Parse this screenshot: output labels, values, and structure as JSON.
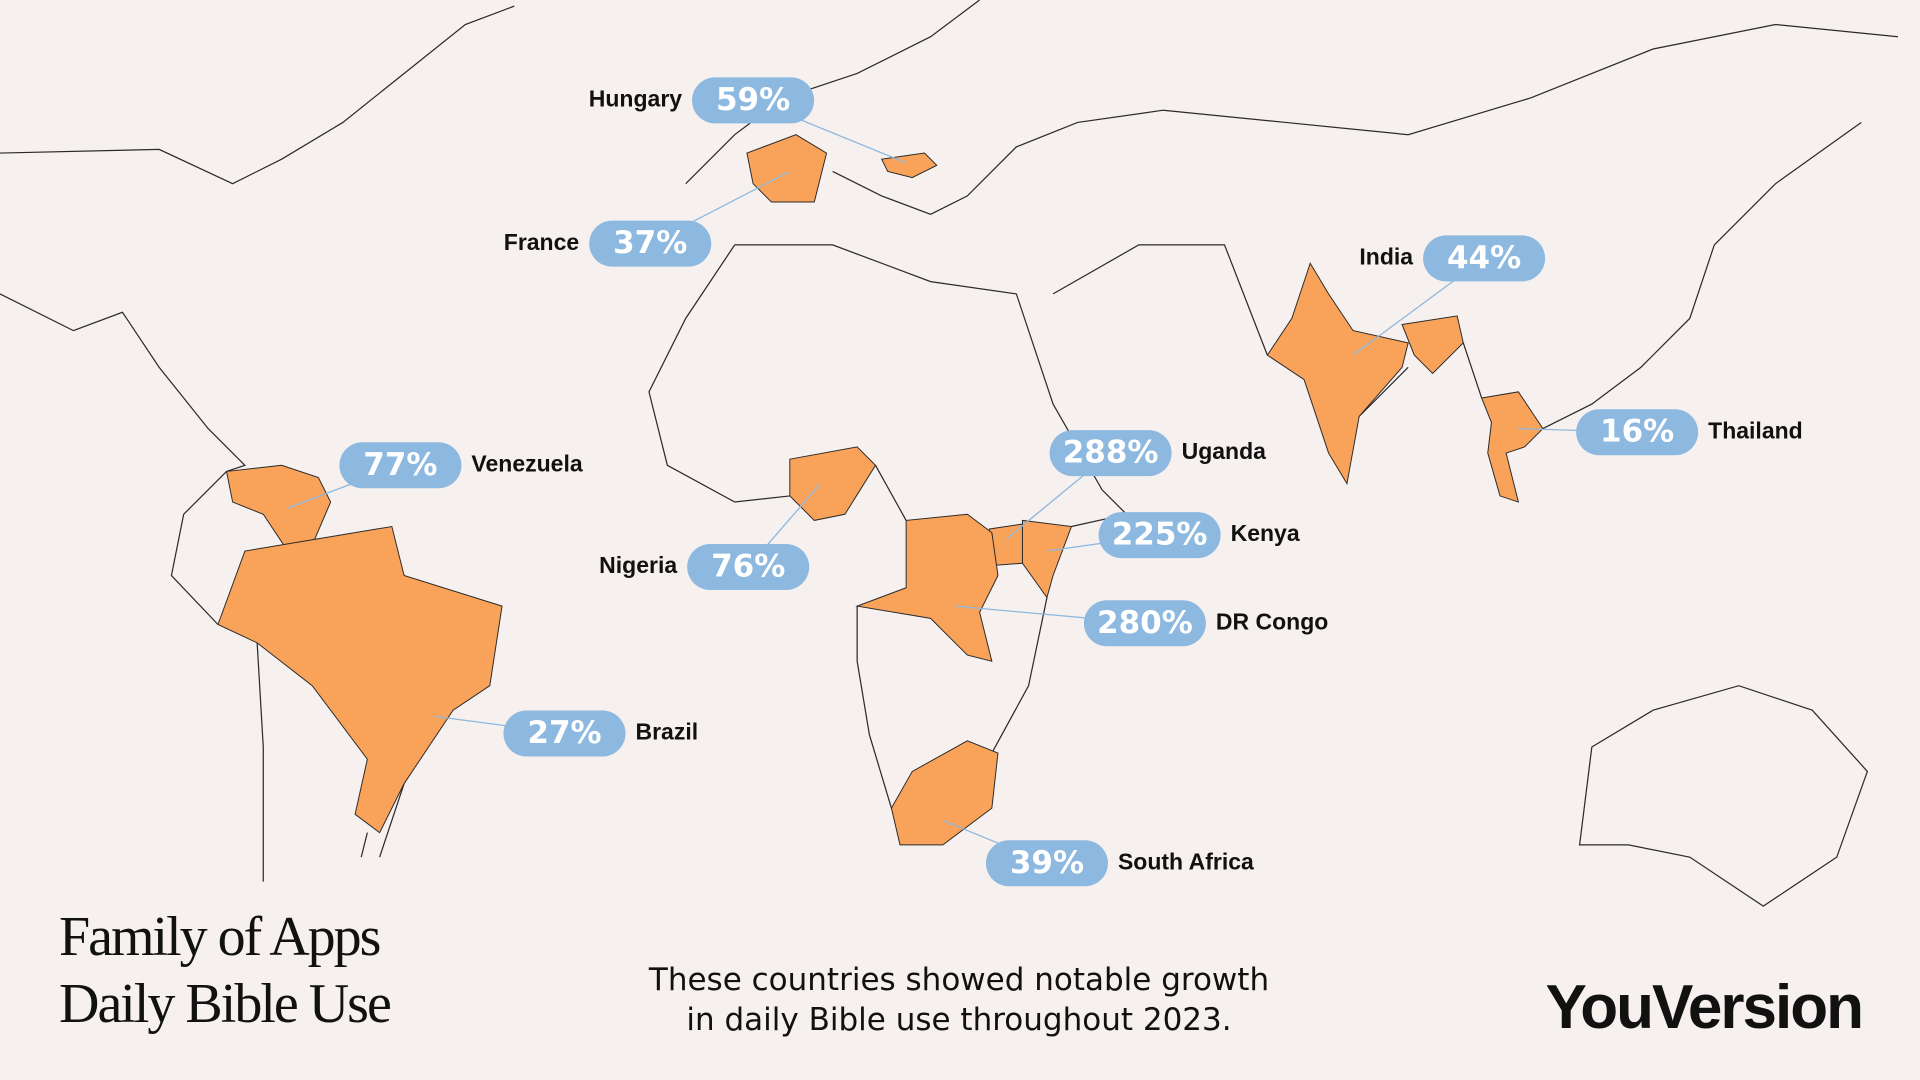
{
  "title_lines": [
    "Family of Apps",
    "Daily Bible Use"
  ],
  "subtitle_lines": [
    "These countries showed notable growth",
    "in daily Bible use throughout 2023."
  ],
  "brand": "YouVersion",
  "countries": [
    {
      "name": "Hungary",
      "growth": "59%"
    },
    {
      "name": "France",
      "growth": "37%"
    },
    {
      "name": "India",
      "growth": "44%"
    },
    {
      "name": "Thailand",
      "growth": "16%"
    },
    {
      "name": "Venezuela",
      "growth": "77%"
    },
    {
      "name": "Uganda",
      "growth": "288%"
    },
    {
      "name": "Kenya",
      "growth": "225%"
    },
    {
      "name": "Nigeria",
      "growth": "76%"
    },
    {
      "name": "DR Congo",
      "growth": "280%"
    },
    {
      "name": "Brazil",
      "growth": "27%"
    },
    {
      "name": "South Africa",
      "growth": "39%"
    }
  ]
}
